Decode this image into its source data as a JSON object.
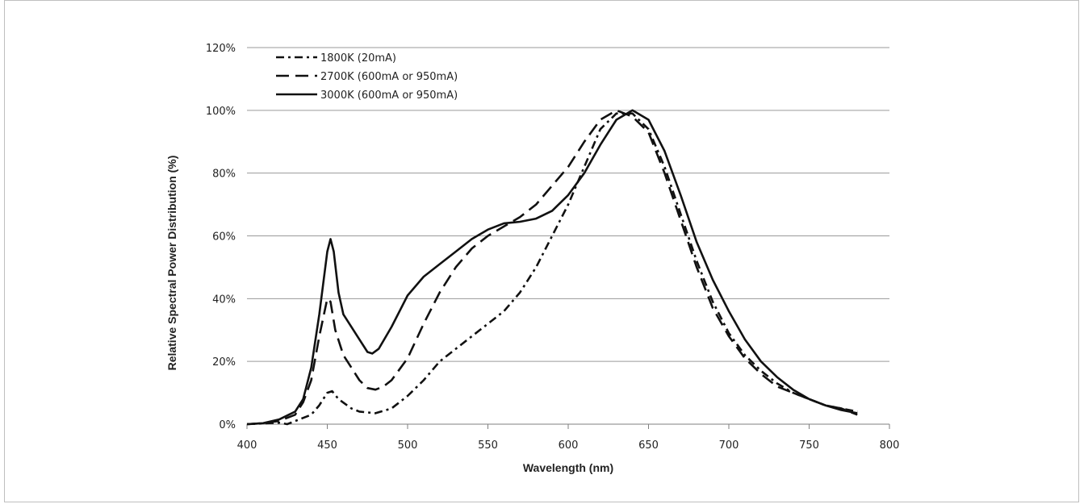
{
  "chart_data": {
    "type": "line",
    "title": "",
    "xlabel": "Wavelength (nm)",
    "ylabel": "Relative Spectral Power Distribution (%)",
    "xlim": [
      400,
      800
    ],
    "ylim": [
      0,
      120
    ],
    "x_ticks": [
      "400",
      "450",
      "500",
      "550",
      "600",
      "650",
      "700",
      "750",
      "800"
    ],
    "y_ticks": [
      "0%",
      "20%",
      "40%",
      "60%",
      "80%",
      "100%",
      "120%"
    ],
    "grid": "horizontal",
    "legend_position": "top-left",
    "series": [
      {
        "name": "1800K (20mA)",
        "dash": "dash-dot",
        "points": [
          [
            400,
            0
          ],
          [
            420,
            0.5
          ],
          [
            425,
            0
          ],
          [
            430,
            1
          ],
          [
            440,
            3
          ],
          [
            445,
            6
          ],
          [
            450,
            10
          ],
          [
            453,
            10.5
          ],
          [
            457,
            8
          ],
          [
            465,
            5
          ],
          [
            470,
            4
          ],
          [
            480,
            3.5
          ],
          [
            490,
            5
          ],
          [
            500,
            9
          ],
          [
            510,
            14
          ],
          [
            520,
            20
          ],
          [
            530,
            24
          ],
          [
            540,
            28
          ],
          [
            550,
            32
          ],
          [
            560,
            36
          ],
          [
            570,
            42
          ],
          [
            580,
            50
          ],
          [
            590,
            60
          ],
          [
            600,
            70
          ],
          [
            610,
            82
          ],
          [
            620,
            94
          ],
          [
            630,
            99
          ],
          [
            640,
            99
          ],
          [
            650,
            94
          ],
          [
            660,
            82
          ],
          [
            670,
            67
          ],
          [
            680,
            52
          ],
          [
            690,
            39
          ],
          [
            700,
            29
          ],
          [
            710,
            22
          ],
          [
            720,
            17
          ],
          [
            730,
            13
          ],
          [
            740,
            10
          ],
          [
            750,
            8
          ],
          [
            760,
            6
          ],
          [
            770,
            5
          ],
          [
            780,
            4
          ]
        ]
      },
      {
        "name": "2700K (600mA or 950mA)",
        "dash": "long-dash",
        "points": [
          [
            400,
            0
          ],
          [
            410,
            0.3
          ],
          [
            420,
            1
          ],
          [
            430,
            3
          ],
          [
            435,
            7
          ],
          [
            440,
            14
          ],
          [
            445,
            28
          ],
          [
            450,
            40
          ],
          [
            452,
            39
          ],
          [
            455,
            30
          ],
          [
            460,
            22
          ],
          [
            465,
            18
          ],
          [
            470,
            14
          ],
          [
            475,
            11.5
          ],
          [
            480,
            11
          ],
          [
            485,
            12
          ],
          [
            490,
            14
          ],
          [
            500,
            21
          ],
          [
            510,
            32
          ],
          [
            520,
            42
          ],
          [
            530,
            50
          ],
          [
            540,
            56
          ],
          [
            550,
            60
          ],
          [
            560,
            63
          ],
          [
            570,
            66
          ],
          [
            580,
            70
          ],
          [
            590,
            76
          ],
          [
            600,
            82
          ],
          [
            610,
            90
          ],
          [
            620,
            97
          ],
          [
            630,
            100
          ],
          [
            640,
            98
          ],
          [
            650,
            93
          ],
          [
            660,
            80
          ],
          [
            670,
            65
          ],
          [
            680,
            50
          ],
          [
            690,
            37
          ],
          [
            700,
            28
          ],
          [
            710,
            21
          ],
          [
            720,
            16
          ],
          [
            730,
            12
          ],
          [
            740,
            10
          ],
          [
            750,
            8
          ],
          [
            760,
            6
          ],
          [
            770,
            5
          ],
          [
            780,
            3
          ]
        ]
      },
      {
        "name": "3000K (600mA or 950mA)",
        "dash": "solid",
        "points": [
          [
            400,
            0
          ],
          [
            410,
            0.3
          ],
          [
            420,
            1.5
          ],
          [
            430,
            4
          ],
          [
            435,
            8
          ],
          [
            440,
            18
          ],
          [
            445,
            35
          ],
          [
            450,
            55
          ],
          [
            452,
            59
          ],
          [
            454,
            55
          ],
          [
            457,
            42
          ],
          [
            460,
            35
          ],
          [
            465,
            31
          ],
          [
            470,
            27
          ],
          [
            475,
            23
          ],
          [
            478,
            22.5
          ],
          [
            482,
            24
          ],
          [
            490,
            31
          ],
          [
            500,
            41
          ],
          [
            510,
            47
          ],
          [
            520,
            51
          ],
          [
            530,
            55
          ],
          [
            540,
            59
          ],
          [
            550,
            62
          ],
          [
            560,
            64
          ],
          [
            570,
            64.5
          ],
          [
            580,
            65.5
          ],
          [
            590,
            68
          ],
          [
            600,
            73
          ],
          [
            610,
            80
          ],
          [
            620,
            89
          ],
          [
            630,
            97
          ],
          [
            640,
            100
          ],
          [
            650,
            97
          ],
          [
            660,
            87
          ],
          [
            670,
            73
          ],
          [
            680,
            58
          ],
          [
            690,
            46
          ],
          [
            700,
            36
          ],
          [
            710,
            27
          ],
          [
            720,
            20
          ],
          [
            730,
            15
          ],
          [
            740,
            11
          ],
          [
            750,
            8
          ],
          [
            760,
            6
          ],
          [
            770,
            4.5
          ],
          [
            780,
            3.5
          ]
        ]
      }
    ]
  }
}
